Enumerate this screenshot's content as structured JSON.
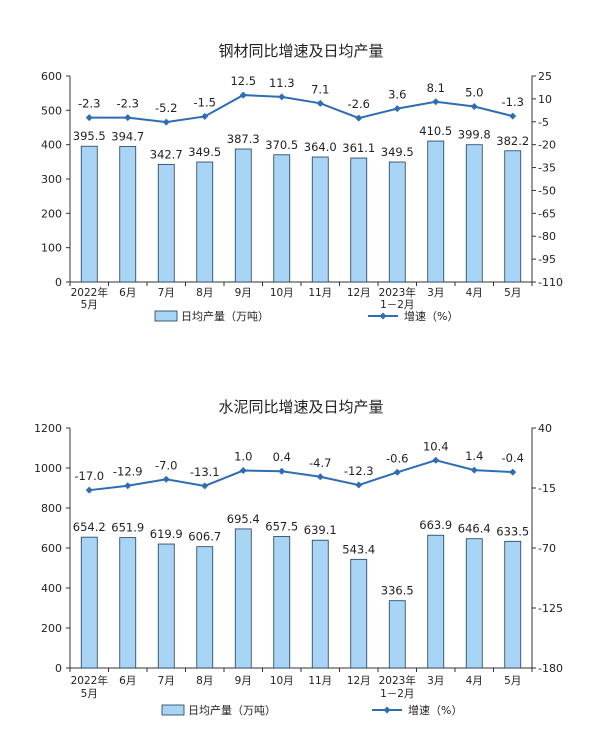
{
  "colors": {
    "bar_fill": "#a8d4f5",
    "bar_stroke": "#1f3b57",
    "line": "#2e6db4",
    "axis": "#333333"
  },
  "chart_data": [
    {
      "type": "bar",
      "title": "钢材同比增速及日均产量",
      "categories": [
        "2022年\n5月",
        "6月",
        "7月",
        "8月",
        "9月",
        "10月",
        "11月",
        "12月",
        "2023年\n1－2月",
        "3月",
        "4月",
        "5月"
      ],
      "series": [
        {
          "name": "日均产量（万吨）",
          "type": "bar",
          "axis": "left",
          "values": [
            395.5,
            394.7,
            342.7,
            349.5,
            387.3,
            370.5,
            364.0,
            361.1,
            349.5,
            410.5,
            399.8,
            382.2
          ],
          "labels": [
            "395.5",
            "394.7",
            "342.7",
            "349.5",
            "387.3",
            "370.5",
            "364.0",
            "361.1",
            "349.5",
            "410.5",
            "399.8",
            "382.2"
          ]
        },
        {
          "name": "增速（%）",
          "type": "line",
          "axis": "right",
          "values": [
            -2.3,
            -2.3,
            -5.2,
            -1.5,
            12.5,
            11.3,
            7.1,
            -2.6,
            3.6,
            8.1,
            5.0,
            -1.3
          ],
          "labels": [
            "-2.3",
            "-2.3",
            "-5.2",
            "-1.5",
            "12.5",
            "11.3",
            "7.1",
            "-2.6",
            "3.6",
            "8.1",
            "5.0",
            "-1.3"
          ]
        }
      ],
      "y_left": {
        "min": 0,
        "max": 600,
        "ticks": [
          "0",
          "100",
          "200",
          "300",
          "400",
          "500",
          "600"
        ]
      },
      "y_right": {
        "min": -110,
        "max": 25,
        "ticks": [
          "-110",
          "-95",
          "-80",
          "-65",
          "-50",
          "-35",
          "-20",
          "-5",
          "10",
          "25"
        ]
      },
      "legend": {
        "bar": "日均产量（万吨）",
        "line": "增速（%）"
      },
      "grid": false
    },
    {
      "type": "bar",
      "title": "水泥同比增速及日均产量",
      "categories": [
        "2022年\n5月",
        "6月",
        "7月",
        "8月",
        "9月",
        "10月",
        "11月",
        "12月",
        "2023年\n1－2月",
        "3月",
        "4月",
        "5月"
      ],
      "series": [
        {
          "name": "日均产量（万吨）",
          "type": "bar",
          "axis": "left",
          "values": [
            654.2,
            651.9,
            619.9,
            606.7,
            695.4,
            657.5,
            639.1,
            543.4,
            336.5,
            663.9,
            646.4,
            633.5
          ],
          "labels": [
            "654.2",
            "651.9",
            "619.9",
            "606.7",
            "695.4",
            "657.5",
            "639.1",
            "543.4",
            "336.5",
            "663.9",
            "646.4",
            "633.5"
          ]
        },
        {
          "name": "增速（%）",
          "type": "line",
          "axis": "right",
          "values": [
            -17.0,
            -12.9,
            -7.0,
            -13.1,
            1.0,
            0.4,
            -4.7,
            -12.3,
            -0.6,
            10.4,
            1.4,
            -0.4
          ],
          "labels": [
            "-17.0",
            "-12.9",
            "-7.0",
            "-13.1",
            "1.0",
            "0.4",
            "-4.7",
            "-12.3",
            "-0.6",
            "10.4",
            "1.4",
            "-0.4"
          ]
        }
      ],
      "y_left": {
        "min": 0,
        "max": 1200,
        "ticks": [
          "0",
          "200",
          "400",
          "600",
          "800",
          "1000",
          "1200"
        ]
      },
      "y_right": {
        "min": -180,
        "max": 40,
        "ticks": [
          "-180",
          "-125",
          "-70",
          "-15",
          "40"
        ]
      },
      "legend": {
        "bar": "日均产量（万吨）",
        "line": "增速（%）"
      },
      "grid": false
    }
  ]
}
